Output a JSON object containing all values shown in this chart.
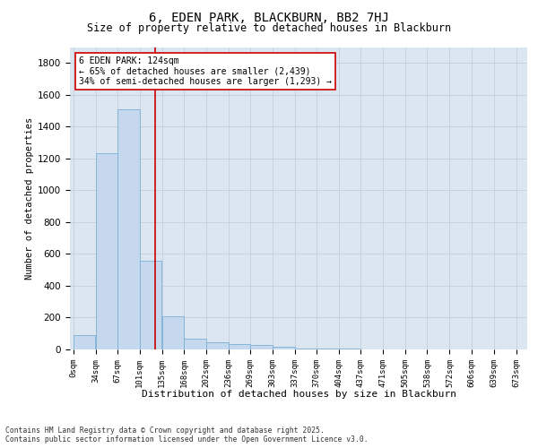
{
  "title": "6, EDEN PARK, BLACKBURN, BB2 7HJ",
  "subtitle": "Size of property relative to detached houses in Blackburn",
  "xlabel": "Distribution of detached houses by size in Blackburn",
  "ylabel": "Number of detached properties",
  "footer_line1": "Contains HM Land Registry data © Crown copyright and database right 2025.",
  "footer_line2": "Contains public sector information licensed under the Open Government Licence v3.0.",
  "annotation_title": "6 EDEN PARK: 124sqm",
  "annotation_line2": "← 65% of detached houses are smaller (2,439)",
  "annotation_line3": "34% of semi-detached houses are larger (1,293) →",
  "property_size_sqm": 124,
  "bar_edges": [
    0,
    34,
    67,
    101,
    135,
    168,
    202,
    236,
    269,
    303,
    337,
    370,
    404,
    437,
    471,
    505,
    538,
    572,
    606,
    639,
    673
  ],
  "bar_heights": [
    90,
    1235,
    1510,
    560,
    210,
    65,
    45,
    35,
    28,
    15,
    8,
    5,
    3,
    2,
    1,
    0,
    0,
    0,
    0,
    0
  ],
  "bar_color": "#c5d8ed",
  "bar_edgecolor": "#7bafd4",
  "vline_color": "#cc0000",
  "ylim": [
    0,
    1900
  ],
  "yticks": [
    0,
    200,
    400,
    600,
    800,
    1000,
    1200,
    1400,
    1600,
    1800
  ],
  "grid_color": "#c0c8d8",
  "plot_bg_color": "#dce6f1",
  "fig_bg_color": "#ffffff",
  "annotation_box_facecolor": "#ffffff",
  "annotation_box_edgecolor": "#cc0000",
  "tick_labels": [
    "0sqm",
    "34sqm",
    "67sqm",
    "101sqm",
    "135sqm",
    "168sqm",
    "202sqm",
    "236sqm",
    "269sqm",
    "303sqm",
    "337sqm",
    "370sqm",
    "404sqm",
    "437sqm",
    "471sqm",
    "505sqm",
    "538sqm",
    "572sqm",
    "606sqm",
    "639sqm",
    "673sqm"
  ],
  "title_fontsize": 10,
  "subtitle_fontsize": 8.5,
  "xlabel_fontsize": 8,
  "ylabel_fontsize": 7.5,
  "ytick_fontsize": 7.5,
  "xtick_fontsize": 6.5,
  "annotation_fontsize": 7,
  "footer_fontsize": 5.8
}
